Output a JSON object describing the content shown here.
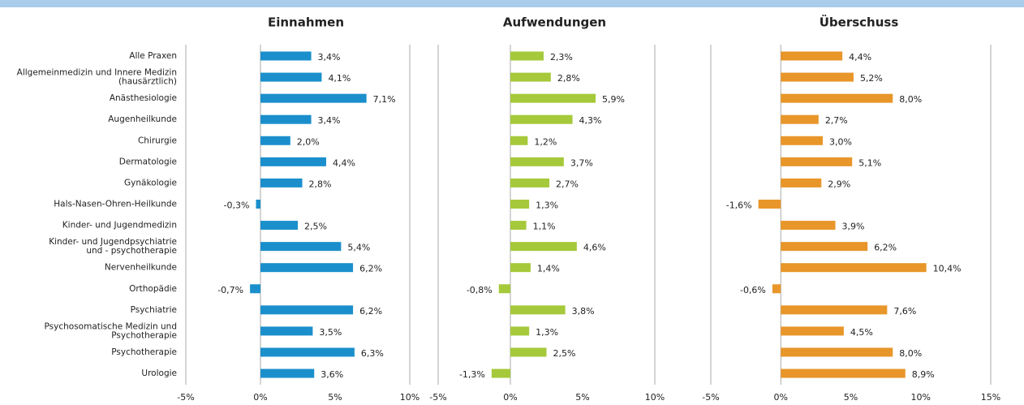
{
  "chart_data": [
    {
      "type": "bar",
      "title": "Einnahmen",
      "color": "#1b8fcc",
      "categories": [
        "Alle Praxen",
        "Allgemeinmedizin und Innere Medizin\n(hausärztlich)",
        "Anästhesiologie",
        "Augenheilkunde",
        "Chirurgie",
        "Dermatologie",
        "Gynäkologie",
        "Hals-Nasen-Ohren-Heilkunde",
        "Kinder- und Jugendmedizin",
        "Kinder- und Jugendpsychiatrie\nund - psychotherapie",
        "Nervenheilkunde",
        "Orthopädie",
        "Psychiatrie",
        "Psychosomatische Medizin und\nPsychotherapie",
        "Psychotherapie",
        "Urologie"
      ],
      "values": [
        3.4,
        4.1,
        7.1,
        3.4,
        2.0,
        4.4,
        2.8,
        -0.3,
        2.5,
        5.4,
        6.2,
        -0.7,
        6.2,
        3.5,
        6.3,
        3.6
      ],
      "value_labels": [
        "3,4%",
        "4,1%",
        "7,1%",
        "3,4%",
        "2,0%",
        "4,4%",
        "2,8%",
        "-0,3%",
        "2,5%",
        "5,4%",
        "6,2%",
        "-0,7%",
        "6,2%",
        "3,5%",
        "6,3%",
        "3,6%"
      ],
      "xlim": [
        -5,
        10
      ],
      "xticks": [
        {
          "value": -5,
          "label": "-5%"
        },
        {
          "value": 0,
          "label": "0%"
        },
        {
          "value": 5,
          "label": "5%"
        },
        {
          "value": 10,
          "label": "10%"
        }
      ]
    },
    {
      "type": "bar",
      "title": "Aufwendungen",
      "color": "#a5c93a",
      "values": [
        2.3,
        2.8,
        5.9,
        4.3,
        1.2,
        3.7,
        2.7,
        1.3,
        1.1,
        4.6,
        1.4,
        -0.8,
        3.8,
        1.3,
        2.5,
        -1.3
      ],
      "value_labels": [
        "2,3%",
        "2,8%",
        "5,9%",
        "4,3%",
        "1,2%",
        "3,7%",
        "2,7%",
        "1,3%",
        "1,1%",
        "4,6%",
        "1,4%",
        "-0,8%",
        "3,8%",
        "1,3%",
        "2,5%",
        "-1,3%"
      ],
      "xlim": [
        -5,
        10
      ],
      "xticks": [
        {
          "value": -5,
          "label": "-5%"
        },
        {
          "value": 0,
          "label": "0%"
        },
        {
          "value": 5,
          "label": "5%"
        },
        {
          "value": 10,
          "label": "10%"
        }
      ]
    },
    {
      "type": "bar",
      "title": "Überschuss",
      "color": "#e8962a",
      "values": [
        4.4,
        5.2,
        8.0,
        2.7,
        3.0,
        5.1,
        2.9,
        -1.6,
        3.9,
        6.2,
        10.4,
        -0.6,
        7.6,
        4.5,
        8.0,
        8.9
      ],
      "value_labels": [
        "4,4%",
        "5,2%",
        "8,0%",
        "2,7%",
        "3,0%",
        "5,1%",
        "2,9%",
        "-1,6%",
        "3,9%",
        "6,2%",
        "10,4%",
        "-0,6%",
        "7,6%",
        "4,5%",
        "8,0%",
        "8,9%"
      ],
      "xlim": [
        -5,
        15
      ],
      "xticks": [
        {
          "value": -5,
          "label": "-5%"
        },
        {
          "value": 0,
          "label": "0%"
        },
        {
          "value": 5,
          "label": "5%"
        },
        {
          "value": 10,
          "label": "10%"
        },
        {
          "value": 15,
          "label": "15%"
        }
      ]
    }
  ]
}
